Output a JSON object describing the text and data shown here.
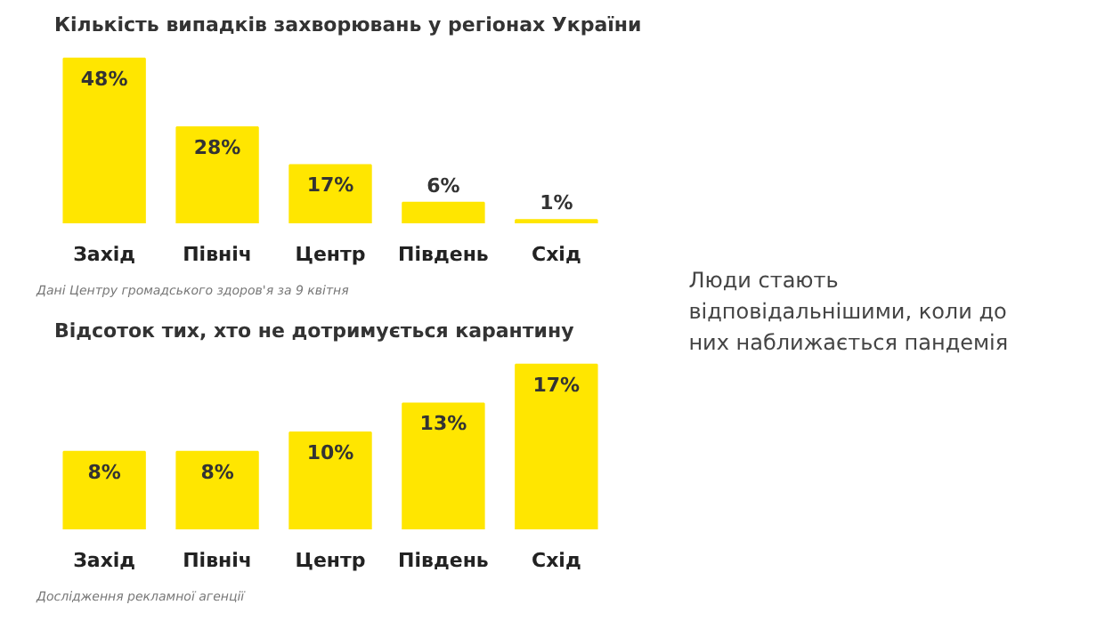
{
  "chart_data": [
    {
      "type": "bar",
      "title": "Кількість випадків захворювань у регіонах України",
      "categories": [
        "Захід",
        "Північ",
        "Центр",
        "Південь",
        "Схід"
      ],
      "values": [
        48,
        28,
        17,
        6,
        1
      ],
      "value_labels": [
        "48%",
        "28%",
        "17%",
        "6%",
        "1%"
      ],
      "color": "#ffe600",
      "grid": false,
      "annotations": [
        "Дані Центру громадського здоров'я за 9 квітня"
      ]
    },
    {
      "type": "bar",
      "title": "Відсоток тих, хто не дотримується карантину",
      "categories": [
        "Захід",
        "Північ",
        "Центр",
        "Південь",
        "Схід"
      ],
      "values": [
        8,
        8,
        10,
        13,
        17
      ],
      "value_labels": [
        "8%",
        "8%",
        "10%",
        "13%",
        "17%"
      ],
      "color": "#ffe600",
      "grid": false,
      "annotations": [
        "Дослідження рекламної агенції"
      ]
    },
    {
      "type": "other",
      "annotations": [
        "Люди стають відповідальнішими, коли до них наближається пандемія"
      ]
    }
  ]
}
